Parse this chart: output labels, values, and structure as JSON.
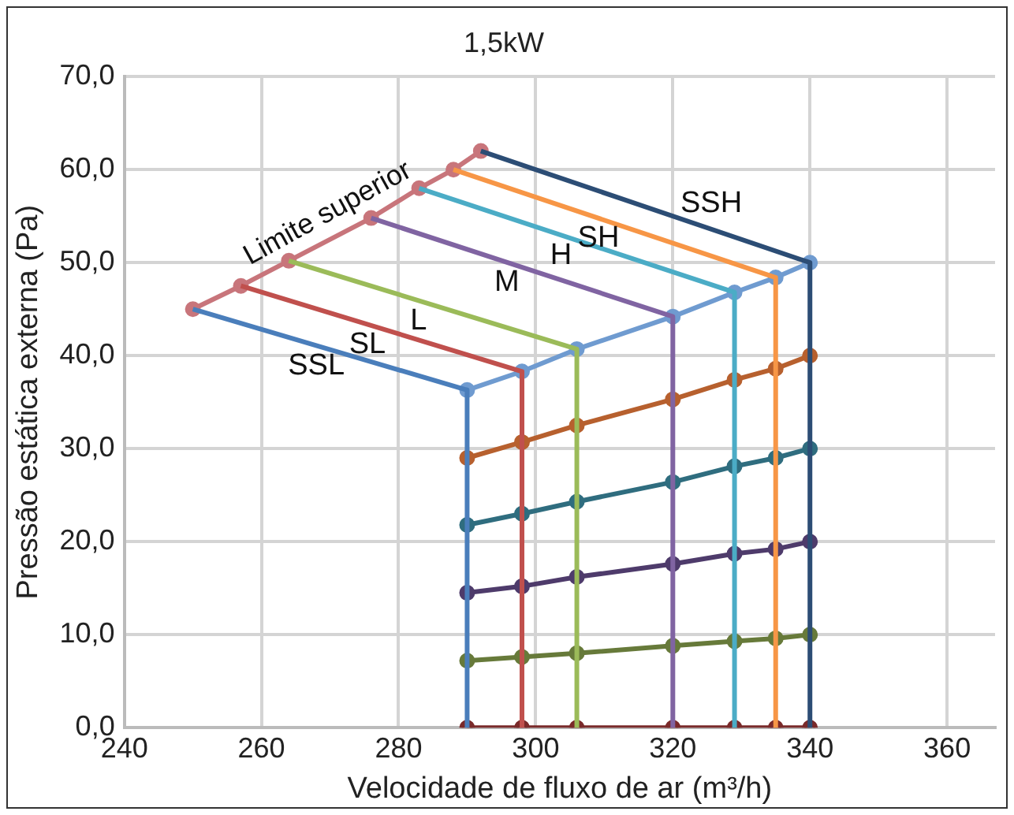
{
  "chart_data": {
    "type": "line",
    "title": "1,5kW",
    "xlabel": "Velocidade de fluxo de ar (m³/h)",
    "ylabel": "Pressão estática externa (Pa)",
    "xlim": [
      240,
      367
    ],
    "xticks": [
      240,
      260,
      280,
      300,
      320,
      340,
      360
    ],
    "ylim": [
      0,
      70
    ],
    "yticks": [
      {
        "value": 0,
        "label": "0,0"
      },
      {
        "value": 10,
        "label": "10,0"
      },
      {
        "value": 20,
        "label": "20,0"
      },
      {
        "value": 30,
        "label": "30,0"
      },
      {
        "value": 40,
        "label": "40,0"
      },
      {
        "value": 50,
        "label": "50,0"
      },
      {
        "value": 60,
        "label": "60,0"
      },
      {
        "value": 70,
        "label": "70,0"
      }
    ],
    "grid": true,
    "legend": false,
    "series": [
      {
        "name": "SSL",
        "color": "#4a7ebb",
        "marker": "none",
        "x": [
          250,
          290,
          290
        ],
        "values": [
          45,
          36.3,
          0
        ]
      },
      {
        "name": "SL",
        "color": "#c0504d",
        "marker": "none",
        "x": [
          257,
          298,
          298
        ],
        "values": [
          47.5,
          38.3,
          0
        ]
      },
      {
        "name": "L",
        "color": "#9bbb59",
        "marker": "none",
        "x": [
          264,
          306,
          306
        ],
        "values": [
          50.2,
          40.7,
          0
        ]
      },
      {
        "name": "M",
        "color": "#8064a2",
        "marker": "none",
        "x": [
          276,
          320,
          320
        ],
        "values": [
          54.8,
          44.2,
          0
        ]
      },
      {
        "name": "H",
        "color": "#4bacc6",
        "marker": "none",
        "x": [
          283,
          329,
          329
        ],
        "values": [
          58,
          46.8,
          0
        ]
      },
      {
        "name": "SH",
        "color": "#f79646",
        "marker": "none",
        "x": [
          288,
          335,
          335
        ],
        "values": [
          60,
          48.4,
          0
        ]
      },
      {
        "name": "SSH",
        "color": "#2c4d75",
        "marker": "none",
        "x": [
          292,
          340,
          340
        ],
        "values": [
          62,
          50,
          0
        ]
      },
      {
        "name": "Limite superior",
        "color": "#c8757b",
        "marker": "circle",
        "x": [
          250,
          257,
          264,
          276,
          283,
          288,
          292
        ],
        "values": [
          45,
          47.5,
          50.2,
          54.8,
          58,
          60,
          62
        ]
      },
      {
        "color": "#6f9bd0",
        "marker": "circle",
        "x": [
          290,
          298,
          306,
          320,
          329,
          335,
          340
        ],
        "values": [
          36.3,
          38.3,
          40.7,
          44.2,
          46.8,
          48.4,
          50
        ]
      },
      {
        "color": "#b7602e",
        "marker": "circle",
        "x": [
          290,
          298,
          306,
          320,
          329,
          335,
          340
        ],
        "values": [
          29,
          30.7,
          32.5,
          35.3,
          37.4,
          38.6,
          40
        ]
      },
      {
        "color": "#2f6d7f",
        "marker": "circle",
        "x": [
          290,
          298,
          306,
          320,
          329,
          335,
          340
        ],
        "values": [
          21.8,
          23,
          24.3,
          26.4,
          28.1,
          29,
          30
        ]
      },
      {
        "color": "#4e3b6b",
        "marker": "circle",
        "x": [
          290,
          298,
          306,
          320,
          329,
          335,
          340
        ],
        "values": [
          14.5,
          15.2,
          16.2,
          17.6,
          18.7,
          19.2,
          20
        ]
      },
      {
        "color": "#677a3a",
        "marker": "circle",
        "x": [
          290,
          298,
          306,
          320,
          329,
          335,
          340
        ],
        "values": [
          7.2,
          7.6,
          8,
          8.8,
          9.3,
          9.6,
          10
        ]
      },
      {
        "color": "#7a2a2a",
        "marker": "circle",
        "x": [
          290,
          298,
          306,
          320,
          329,
          335,
          340
        ],
        "values": [
          0,
          0,
          0,
          0,
          0,
          0,
          0
        ]
      }
    ]
  }
}
